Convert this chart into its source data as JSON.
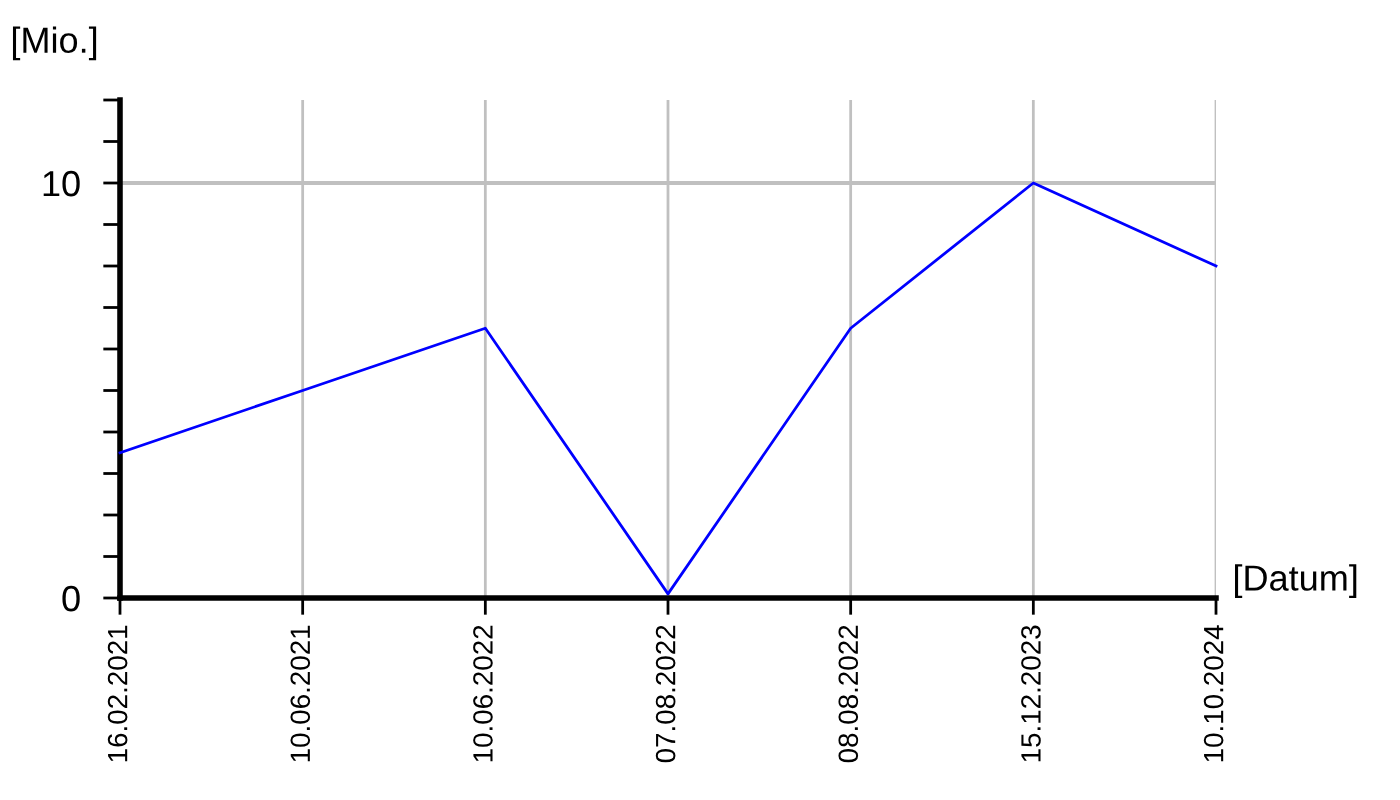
{
  "chart_data": {
    "type": "line",
    "ylabel": "[Mio.]",
    "xlabel": "[Datum]",
    "categories": [
      "16.02.2021",
      "10.06.2021",
      "10.06.2022",
      "07.08.2022",
      "08.08.2022",
      "15.12.2023",
      "10.10.2024"
    ],
    "series": [
      {
        "color": "#0000ff",
        "values": [
          3.5,
          5,
          6.5,
          0.1,
          6.5,
          10,
          8
        ]
      }
    ],
    "ylim": [
      0,
      12
    ],
    "yticks": [
      0,
      {
        "value": 1,
        "label": null
      },
      {
        "value": 2,
        "label": null
      },
      {
        "value": 3,
        "label": null
      },
      {
        "value": 4,
        "label": null
      },
      {
        "value": 5,
        "label": null
      },
      {
        "value": 6,
        "label": null
      },
      {
        "value": 7,
        "label": null
      },
      {
        "value": 8,
        "label": null
      },
      {
        "value": 9,
        "label": null
      },
      10,
      {
        "value": 11,
        "label": null
      },
      {
        "value": 12,
        "label": null
      }
    ],
    "grid": "x",
    "ref_lines": [
      {
        "axis": "y",
        "value": 10,
        "color": "#c0c0c0"
      }
    ],
    "marker": "none",
    "line_style": "solid"
  }
}
